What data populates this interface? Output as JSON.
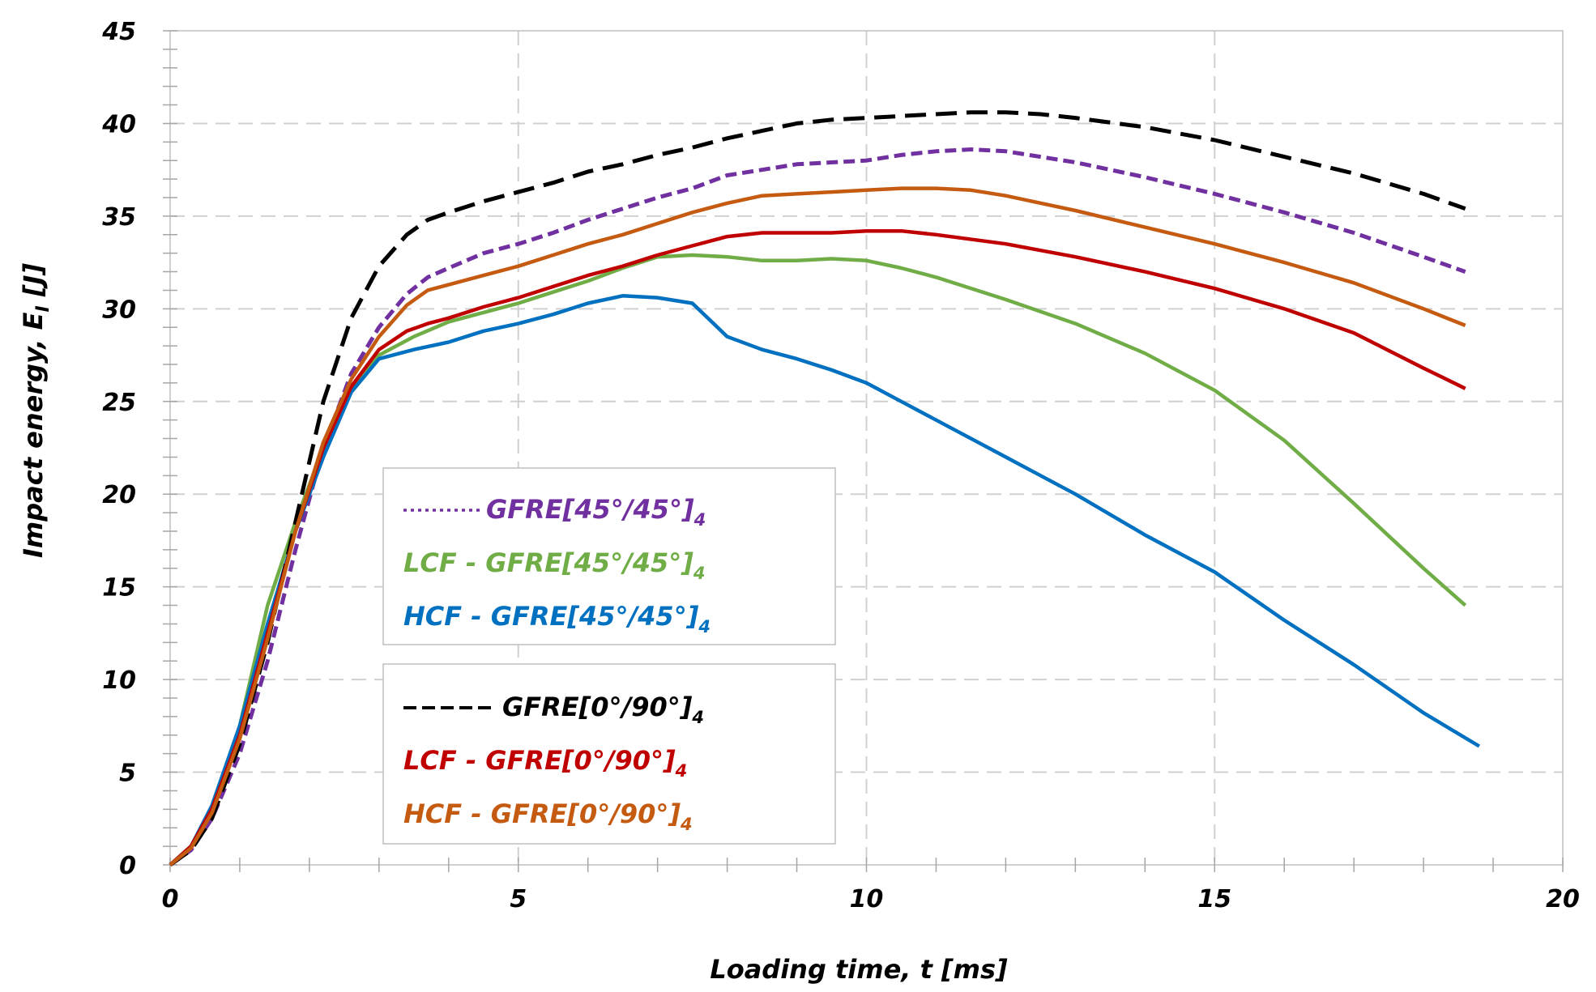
{
  "chart_data": {
    "type": "line",
    "title": "",
    "xlabel": "Loading time, t  [ms]",
    "ylabel_main": "Impact energy, E",
    "ylabel_sub": "I",
    "ylabel_tail": " [J]",
    "xlim": [
      0,
      20
    ],
    "ylim": [
      0,
      45
    ],
    "xticks": [
      "0",
      "5",
      "10",
      "15",
      "20"
    ],
    "yticks": [
      "0",
      "5",
      "10",
      "15",
      "20",
      "25",
      "30",
      "35",
      "40",
      "45"
    ],
    "grid": true,
    "legend_groups": [
      {
        "placement": "center-left",
        "items": [
          0,
          1,
          2
        ]
      },
      {
        "placement": "lower-center-left",
        "items": [
          3,
          4,
          5
        ]
      }
    ],
    "series": [
      {
        "name": "GFRE[45°/45°]",
        "subscript": "4",
        "color": "#7030a0",
        "style": "dotted",
        "legend_line": "dotted",
        "x": [
          0,
          0.3,
          0.6,
          1.0,
          1.4,
          1.8,
          2.2,
          2.6,
          3.0,
          3.4,
          3.7,
          4.0,
          4.5,
          5.0,
          5.5,
          6.0,
          6.5,
          7.0,
          7.5,
          8.0,
          8.5,
          9.0,
          9.5,
          10.0,
          10.5,
          11.0,
          11.5,
          12.0,
          13.0,
          14.0,
          15.0,
          16.0,
          17.0,
          18.0,
          18.6
        ],
        "y": [
          0,
          0.8,
          2.5,
          6.0,
          11.0,
          17.0,
          22.5,
          26.5,
          29.0,
          30.8,
          31.7,
          32.2,
          33.0,
          33.5,
          34.1,
          34.8,
          35.4,
          36.0,
          36.5,
          37.2,
          37.5,
          37.8,
          37.9,
          38.0,
          38.3,
          38.5,
          38.6,
          38.5,
          37.9,
          37.1,
          36.2,
          35.2,
          34.1,
          32.8,
          32.0
        ]
      },
      {
        "name": "LCF - GFRE[45°/45°]",
        "subscript": "4",
        "color": "#70ad47",
        "style": "solid",
        "x": [
          0,
          0.3,
          0.6,
          1.0,
          1.4,
          1.8,
          2.2,
          2.6,
          3.0,
          3.5,
          4.0,
          4.5,
          5.0,
          5.5,
          6.0,
          6.5,
          7.0,
          7.5,
          8.0,
          8.5,
          9.0,
          9.5,
          10.0,
          10.5,
          11.0,
          12.0,
          13.0,
          14.0,
          15.0,
          16.0,
          17.0,
          18.0,
          18.6
        ],
        "y": [
          0,
          1.0,
          3.0,
          7.5,
          14.0,
          18.5,
          22.5,
          25.5,
          27.5,
          28.5,
          29.3,
          29.8,
          30.3,
          30.9,
          31.5,
          32.2,
          32.8,
          32.9,
          32.8,
          32.6,
          32.6,
          32.7,
          32.6,
          32.2,
          31.7,
          30.5,
          29.2,
          27.6,
          25.6,
          22.9,
          19.5,
          16.0,
          14.0
        ]
      },
      {
        "name": "HCF - GFRE[45°/45°]",
        "subscript": "4",
        "color": "#0070c0",
        "style": "solid",
        "x": [
          0,
          0.3,
          0.6,
          1.0,
          1.4,
          1.8,
          2.2,
          2.6,
          3.0,
          3.5,
          4.0,
          4.5,
          5.0,
          5.5,
          6.0,
          6.5,
          7.0,
          7.5,
          8.0,
          8.5,
          9.0,
          9.5,
          10.0,
          10.5,
          11.0,
          12.0,
          13.0,
          14.0,
          15.0,
          16.0,
          17.0,
          18.0,
          18.8
        ],
        "y": [
          0,
          1.0,
          3.2,
          7.5,
          13.0,
          18.0,
          22.0,
          25.5,
          27.3,
          27.8,
          28.2,
          28.8,
          29.2,
          29.7,
          30.3,
          30.7,
          30.6,
          30.3,
          28.5,
          27.8,
          27.3,
          26.7,
          26.0,
          25.0,
          24.0,
          22.0,
          20.0,
          17.8,
          15.8,
          13.2,
          10.8,
          8.2,
          6.4
        ]
      },
      {
        "name": "GFRE[0°/90°]",
        "subscript": "4",
        "color": "#000000",
        "style": "dashed",
        "legend_line": "dashed",
        "x": [
          0,
          0.3,
          0.6,
          1.0,
          1.4,
          1.8,
          2.2,
          2.6,
          3.0,
          3.4,
          3.7,
          4.0,
          4.5,
          5.0,
          5.5,
          6.0,
          6.5,
          7.0,
          7.5,
          8.0,
          8.5,
          9.0,
          9.5,
          10.0,
          10.5,
          11.0,
          11.5,
          12.0,
          12.5,
          13.0,
          14.0,
          15.0,
          16.0,
          17.0,
          18.0,
          18.6
        ],
        "y": [
          0,
          0.8,
          2.5,
          6.5,
          12.0,
          18.5,
          25.0,
          29.5,
          32.3,
          34.0,
          34.8,
          35.2,
          35.8,
          36.3,
          36.8,
          37.4,
          37.8,
          38.3,
          38.7,
          39.2,
          39.6,
          40.0,
          40.2,
          40.3,
          40.4,
          40.5,
          40.6,
          40.6,
          40.5,
          40.3,
          39.8,
          39.1,
          38.2,
          37.3,
          36.2,
          35.4
        ]
      },
      {
        "name": "LCF - GFRE[0°/90°]",
        "subscript": "4",
        "color": "#c00000",
        "style": "solid",
        "x": [
          0,
          0.3,
          0.6,
          1.0,
          1.4,
          1.8,
          2.2,
          2.6,
          3.0,
          3.4,
          3.7,
          4.0,
          4.5,
          5.0,
          5.5,
          6.0,
          6.5,
          7.0,
          7.5,
          8.0,
          8.5,
          9.0,
          9.5,
          10.0,
          10.5,
          11.0,
          12.0,
          13.0,
          14.0,
          15.0,
          16.0,
          17.0,
          18.0,
          18.6
        ],
        "y": [
          0,
          1.0,
          3.0,
          7.0,
          12.5,
          18.0,
          22.5,
          25.8,
          27.8,
          28.8,
          29.2,
          29.5,
          30.1,
          30.6,
          31.2,
          31.8,
          32.3,
          32.9,
          33.4,
          33.9,
          34.1,
          34.1,
          34.1,
          34.2,
          34.2,
          34.0,
          33.5,
          32.8,
          32.0,
          31.1,
          30.0,
          28.7,
          26.8,
          25.7
        ]
      },
      {
        "name": "HCF - GFRE[0°/90°]",
        "subscript": "4",
        "color": "#c55a11",
        "style": "solid",
        "x": [
          0,
          0.3,
          0.6,
          1.0,
          1.4,
          1.8,
          2.2,
          2.6,
          3.0,
          3.4,
          3.7,
          4.0,
          4.5,
          5.0,
          5.5,
          6.0,
          6.5,
          7.0,
          7.5,
          8.0,
          8.5,
          9.0,
          9.5,
          10.0,
          10.5,
          11.0,
          11.5,
          12.0,
          13.0,
          14.0,
          15.0,
          16.0,
          17.0,
          18.0,
          18.6
        ],
        "y": [
          0,
          0.9,
          2.8,
          6.8,
          12.2,
          18.0,
          22.8,
          26.2,
          28.5,
          30.2,
          31.0,
          31.3,
          31.8,
          32.3,
          32.9,
          33.5,
          34.0,
          34.6,
          35.2,
          35.7,
          36.1,
          36.2,
          36.3,
          36.4,
          36.5,
          36.5,
          36.4,
          36.1,
          35.3,
          34.4,
          33.5,
          32.5,
          31.4,
          30.0,
          29.1
        ]
      }
    ]
  }
}
